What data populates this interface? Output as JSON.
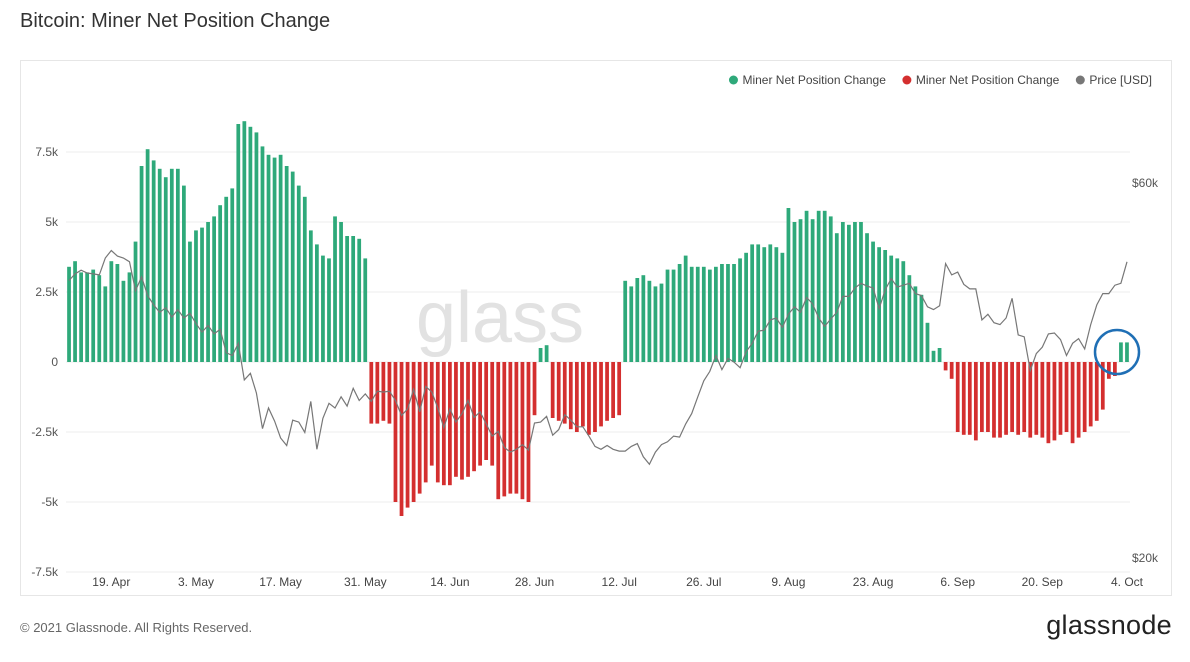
{
  "page": {
    "title": "Bitcoin: Miner Net Position Change",
    "copyright": "© 2021 Glassnode. All Rights Reserved.",
    "brand": "glassnode",
    "watermark": "glass"
  },
  "colors": {
    "positive": "#2ea97a",
    "negative": "#d42f2f",
    "price": "#777777",
    "grid": "#ececec",
    "highlight": "#1f6fb5"
  },
  "chart_data": {
    "type": "bar",
    "legend": [
      {
        "label": "Miner Net Position Change",
        "color": "#2ea97a"
      },
      {
        "label": "Miner Net Position Change",
        "color": "#d42f2f"
      },
      {
        "label": "Price [USD]",
        "color": "#777777"
      }
    ],
    "legend_position": "top-right",
    "y_left": {
      "ticks": [
        7500,
        5000,
        2500,
        0,
        -2500,
        -5000,
        -7500
      ],
      "tick_labels": [
        "7.5k",
        "5k",
        "2.5k",
        "0",
        "-2.5k",
        "-5k",
        "-7.5k"
      ],
      "range": [
        -7500,
        8800
      ]
    },
    "y_right": {
      "tick_labels": [
        "$60k",
        "$20k"
      ],
      "tick_values": [
        60000,
        20000
      ],
      "range": [
        20000,
        60000
      ]
    },
    "x_ticks": [
      "19. Apr",
      "3. May",
      "17. May",
      "31. May",
      "14. Jun",
      "28. Jun",
      "12. Jul",
      "26. Jul",
      "9. Aug",
      "23. Aug",
      "6. Sep",
      "20. Sep",
      "4. Oct"
    ],
    "x_tick_indices": [
      7,
      21,
      35,
      49,
      63,
      77,
      91,
      105,
      119,
      133,
      147,
      161,
      175
    ],
    "bars": [
      3400,
      3600,
      3200,
      3200,
      3300,
      3100,
      2700,
      3600,
      3500,
      2900,
      3200,
      4300,
      7000,
      7600,
      7200,
      6900,
      6600,
      6900,
      6900,
      6300,
      4300,
      4700,
      4800,
      5000,
      5200,
      5600,
      5900,
      6200,
      8500,
      8600,
      8400,
      8200,
      7700,
      7400,
      7300,
      7400,
      7000,
      6800,
      6300,
      5900,
      4700,
      4200,
      3800,
      3700,
      5200,
      5000,
      4500,
      4500,
      4400,
      3700,
      -2200,
      -2200,
      -2100,
      -2200,
      -5000,
      -5500,
      -5200,
      -5000,
      -4700,
      -4300,
      -3700,
      -4300,
      -4400,
      -4400,
      -4100,
      -4200,
      -4100,
      -3900,
      -3700,
      -3500,
      -3700,
      -4900,
      -4800,
      -4700,
      -4700,
      -4900,
      -5000,
      -1900,
      500,
      600,
      -2000,
      -2100,
      -2200,
      -2400,
      -2500,
      -2300,
      -2600,
      -2500,
      -2300,
      -2100,
      -2000,
      -1900,
      2900,
      2700,
      3000,
      3100,
      2900,
      2700,
      2800,
      3300,
      3300,
      3500,
      3800,
      3400,
      3400,
      3400,
      3300,
      3400,
      3500,
      3500,
      3500,
      3700,
      3900,
      4200,
      4200,
      4100,
      4200,
      4100,
      3900,
      5500,
      5000,
      5100,
      5400,
      5100,
      5400,
      5400,
      5200,
      4600,
      5000,
      4900,
      5000,
      5000,
      4600,
      4300,
      4100,
      4000,
      3800,
      3700,
      3600,
      3100,
      2700,
      2400,
      1400,
      400,
      500,
      -300,
      -600,
      -2500,
      -2600,
      -2600,
      -2800,
      -2500,
      -2500,
      -2700,
      -2700,
      -2600,
      -2500,
      -2600,
      -2500,
      -2700,
      -2600,
      -2700,
      -2900,
      -2800,
      -2600,
      -2500,
      -2900,
      -2700,
      -2500,
      -2300,
      -2100,
      -1700,
      -600,
      -500,
      700,
      700
    ],
    "price": [
      49600,
      50300,
      50700,
      50400,
      50300,
      50200,
      52000,
      52800,
      52200,
      52000,
      51600,
      48500,
      50000,
      48000,
      47000,
      46200,
      46700,
      45700,
      46500,
      45600,
      46100,
      45000,
      44100,
      44800,
      43900,
      44400,
      41900,
      41600,
      42900,
      39000,
      39700,
      37600,
      33800,
      36000,
      34600,
      32800,
      32000,
      34700,
      34500,
      33400,
      36700,
      31600,
      34900,
      36500,
      36000,
      37200,
      36200,
      38100,
      36800,
      37500,
      36700,
      37800,
      37700,
      37800,
      36800,
      35200,
      35900,
      38000,
      35600,
      38300,
      37700,
      36000,
      33900,
      35900,
      34500,
      35400,
      36800,
      35000,
      35600,
      34300,
      33000,
      33500,
      31800,
      31300,
      31600,
      32100,
      31500,
      34400,
      34500,
      35100,
      33100,
      33700,
      35300,
      34700,
      34000,
      34000,
      33000,
      31900,
      31600,
      32000,
      31600,
      31400,
      31400,
      31900,
      32200,
      30800,
      30000,
      31300,
      32100,
      32400,
      33000,
      32900,
      34300,
      35400,
      37200,
      38900,
      39900,
      41600,
      40100,
      41300,
      40900,
      40300,
      42000,
      42900,
      44200,
      44300,
      45400,
      45600,
      44600,
      46000,
      46800,
      46200,
      47800,
      47100,
      45600,
      44700,
      45500,
      46200,
      47900,
      47900,
      48800,
      49300,
      49000,
      48800,
      46600,
      48600,
      49800,
      48900,
      49100,
      49300,
      48200,
      48000,
      46800,
      46500,
      46900,
      51400,
      50200,
      50500,
      49200,
      48700,
      48700,
      45400,
      46000,
      45100,
      44900,
      45600,
      47700,
      43800,
      43600,
      40000,
      41800,
      42500,
      43900,
      44000,
      43300,
      41600,
      42900,
      43400,
      42300,
      44900,
      47000,
      48200,
      48200,
      49100,
      49300,
      51600
    ]
  }
}
